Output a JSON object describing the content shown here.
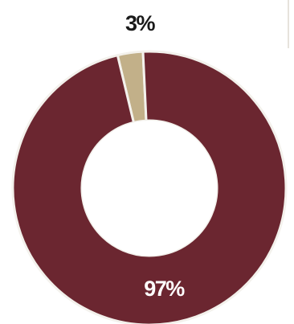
{
  "chart_data": {
    "type": "pie",
    "donut": true,
    "slices": [
      {
        "label": "97%",
        "value": 97,
        "color": "#6b2630"
      },
      {
        "label": "3%",
        "value": 3,
        "color": "#c2b089"
      }
    ],
    "colors": {
      "label_on_dark": "#ffffff",
      "label_outside": "#1a1a1a",
      "slice_gap": "#f3f1ec"
    }
  }
}
